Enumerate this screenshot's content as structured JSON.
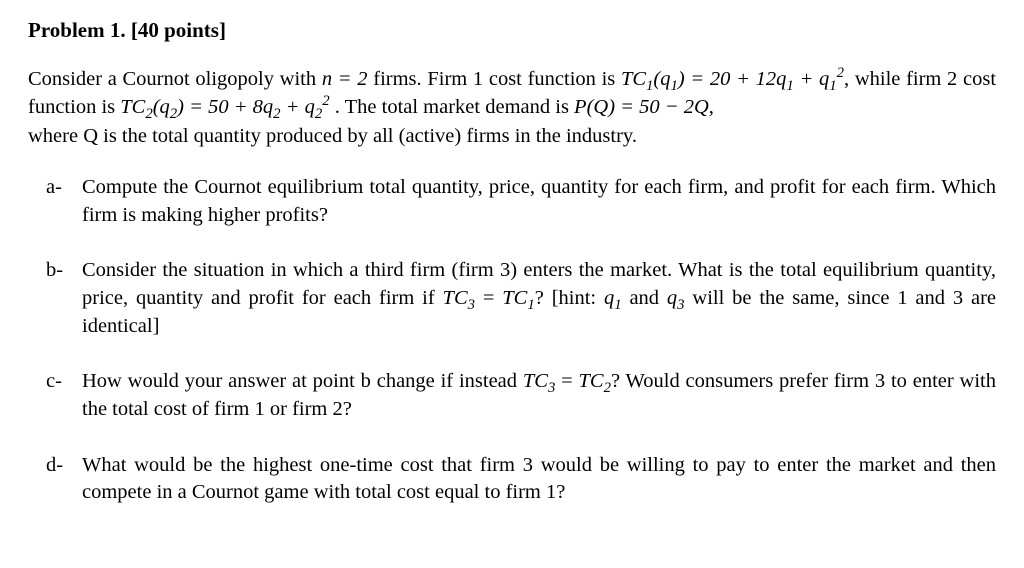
{
  "title": "Problem 1. [40 points]",
  "intro": {
    "l1_a": "Consider a Cournot oligopoly with ",
    "l1_b": " firms. Firm 1 cost function is ",
    "l1_c": ", ",
    "l2_a": "while firm 2 cost function is ",
    "l2_b": " . The total market demand is ",
    "l2_c": ", ",
    "l3": "where Q is the total quantity produced by all (active) firms in the industry.",
    "eq_n": "n = 2",
    "tc1_lhs": "TC",
    "tc1_sub": "1",
    "tc1_arg_q": "q",
    "tc1_arg_sub": "1",
    "tc1_rhs_a": " = 20 + 12",
    "tc1_rhs_b": " + ",
    "tc2_lhs": "TC",
    "tc2_sub": "2",
    "tc2_arg_q": "q",
    "tc2_arg_sub": "2",
    "tc2_rhs_a": " = 50 + 8",
    "tc2_rhs_b": " + ",
    "p_lhs": "P",
    "p_arg": "Q",
    "p_rhs": " = 50 − 2",
    "p_rhs_q": "Q"
  },
  "items": {
    "a": {
      "marker": "a-",
      "text": "Compute the Cournot equilibrium total quantity, price, quantity for each firm, and profit for each firm. Which firm is making higher profits?"
    },
    "b": {
      "marker": "b-",
      "t1": "Consider the situation in which a third firm (firm 3) enters the market. What is the total equilibrium quantity, price, quantity and profit for each firm if ",
      "tc3": "TC",
      "tc3_sub": "3",
      "eq": " = ",
      "tc1": "TC",
      "tc1_sub": "1",
      "t2": "? [hint: ",
      "q1": "q",
      "q1_sub": "1",
      "and": " and ",
      "q3": "q",
      "q3_sub": "3",
      "t3": " will be the same, since 1 and 3 are identical]"
    },
    "c": {
      "marker": "c-",
      "t1": "How would your answer at point b change if instead ",
      "tc3": "TC",
      "tc3_sub": "3",
      "eq": " = ",
      "tc2": "TC",
      "tc2_sub": "2",
      "t2": "? Would consumers prefer firm 3 to enter with the total cost of firm 1 or firm 2?"
    },
    "d": {
      "marker": "d-",
      "text": "What would be the highest one-time cost that firm 3 would be willing to pay to enter the market and then compete in a Cournot game with total cost equal to firm 1?"
    }
  }
}
